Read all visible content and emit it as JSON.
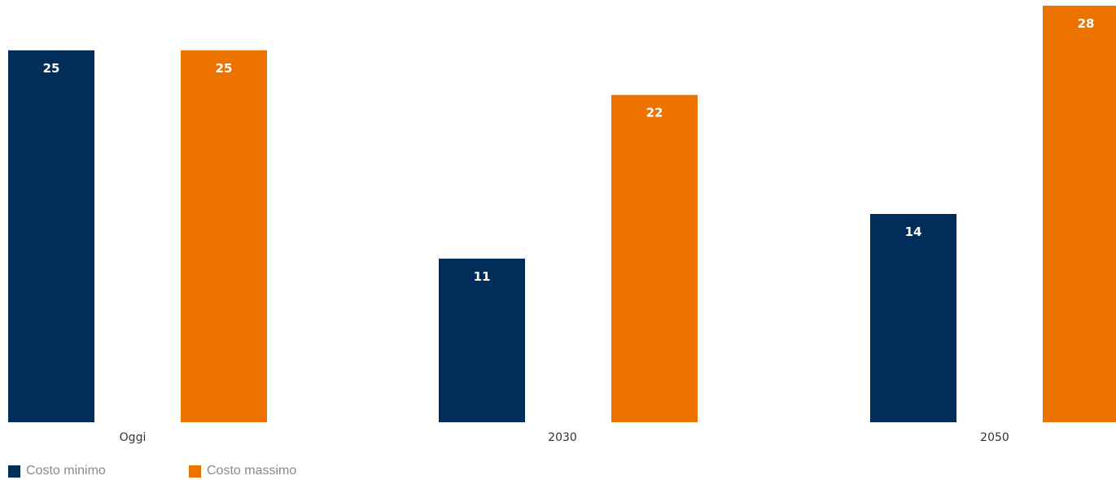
{
  "colors": {
    "min": "#002D5A",
    "max": "#EC7300"
  },
  "chart_data": {
    "type": "bar",
    "title": "",
    "xlabel": "",
    "ylabel": "",
    "categories": [
      "Oggi",
      "2030",
      "2050"
    ],
    "series": [
      {
        "name": "Costo minimo",
        "values": [
          25,
          11,
          14
        ],
        "color": "#002D5A"
      },
      {
        "name": "Costo massimo",
        "values": [
          25,
          22,
          28
        ],
        "color": "#EC7300"
      }
    ],
    "ylim": [
      0,
      28
    ],
    "grid": false,
    "legend": "bottom-left"
  }
}
